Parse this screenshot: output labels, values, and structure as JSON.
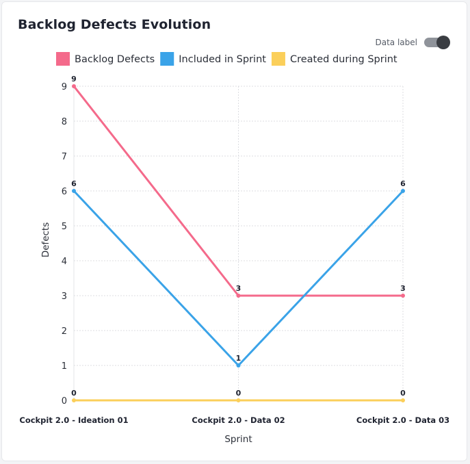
{
  "widget": {
    "title": "Backlog Defects Evolution",
    "toggle": {
      "label": "Data label",
      "on": true
    }
  },
  "chart_data": {
    "type": "line",
    "title": "Backlog Defects Evolution",
    "xlabel": "Sprint",
    "ylabel": "Defects",
    "categories": [
      "Cockpit 2.0 - Ideation 01",
      "Cockpit 2.0 - Data 02",
      "Cockpit 2.0 - Data 03"
    ],
    "ylim": [
      0,
      9
    ],
    "yticks": [
      0,
      1,
      2,
      3,
      4,
      5,
      6,
      7,
      8,
      9
    ],
    "grid": true,
    "data_labels": true,
    "legend_position": "top-center",
    "series": [
      {
        "name": "Backlog Defects",
        "color": "#f46a8b",
        "values": [
          9,
          3,
          3
        ]
      },
      {
        "name": "Included in Sprint",
        "color": "#3aa3e8",
        "values": [
          6,
          1,
          6
        ]
      },
      {
        "name": "Created during Sprint",
        "color": "#fbcf5a",
        "values": [
          0,
          0,
          0
        ]
      }
    ]
  }
}
